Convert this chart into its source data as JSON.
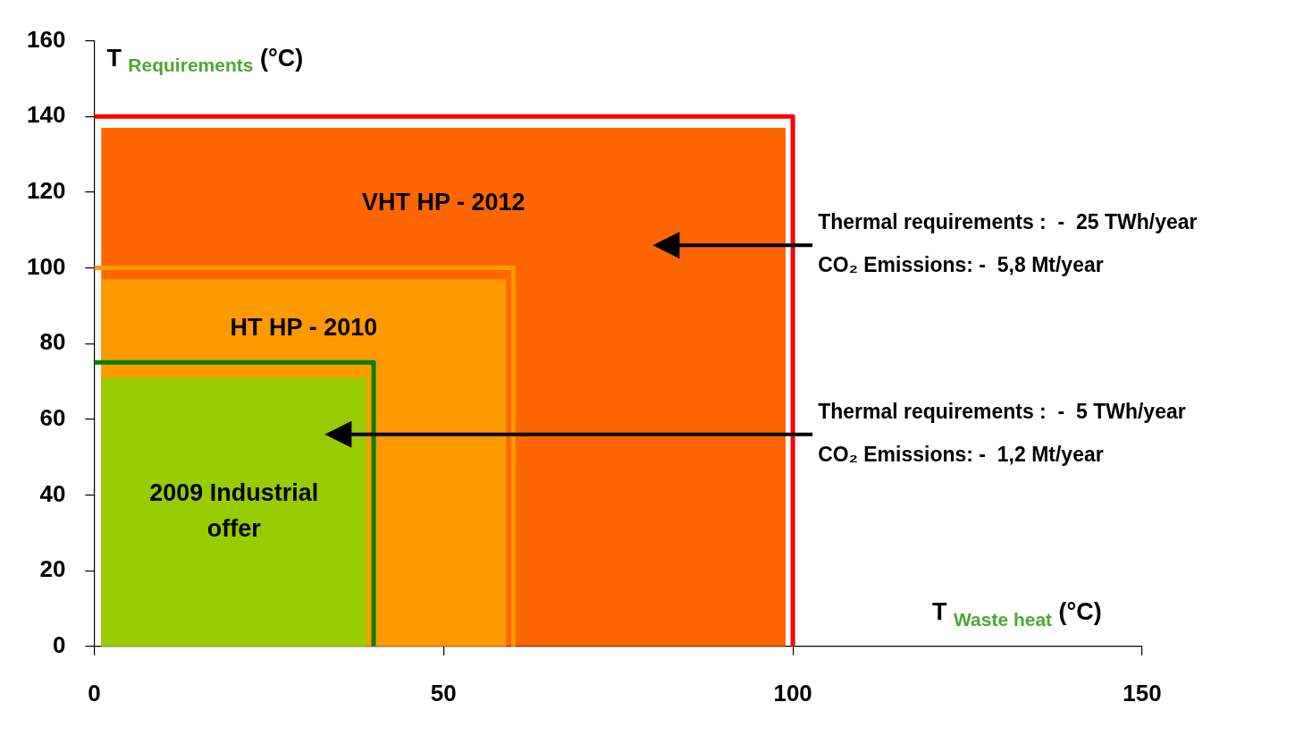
{
  "chart_data": {
    "type": "line",
    "xlabel": "T $_{Waste heat}$ (°C)",
    "ylabel": "T $_{Requirements}$ (°C)",
    "xlim": [
      0,
      150
    ],
    "xticks": [
      0,
      50,
      100,
      150
    ],
    "ylim": [
      0,
      160
    ],
    "yticks": [
      0,
      20,
      40,
      60,
      80,
      100,
      120,
      140,
      160
    ],
    "grid": false,
    "marker": "none",
    "series": [
      {
        "type": "area",
        "color": "#ff6600",
        "x": [
          1,
          99
        ],
        "values": [
          137,
          137
        ]
      },
      {
        "type": "area",
        "color": "#ff9900",
        "x": [
          1,
          59
        ],
        "values": [
          97,
          97
        ]
      },
      {
        "type": "area",
        "color": "#99cc00",
        "x": [
          1,
          39
        ],
        "values": [
          71,
          71
        ]
      },
      {
        "type": "line",
        "color": "#ff0000",
        "x": [
          0,
          100,
          100
        ],
        "values": [
          140,
          140,
          0
        ]
      },
      {
        "type": "line",
        "color": "#ff9900",
        "x": [
          0,
          60,
          60
        ],
        "values": [
          100,
          100,
          0
        ]
      },
      {
        "type": "line",
        "color": "#008000",
        "x": [
          0,
          40,
          40
        ],
        "values": [
          75,
          75,
          0
        ]
      }
    ],
    "annotations": [
      "VHT HP - 2012",
      "HT HP - 2010",
      "2009 Industrial offer",
      "Thermal requirements :  -  25 TWh/year\nCO₂ Emissions: -  5,8 Mt/year",
      "Thermal requirements :  -  5 TWh/year\nCO₂ Emissions: -  1,2 Mt/year"
    ]
  }
}
